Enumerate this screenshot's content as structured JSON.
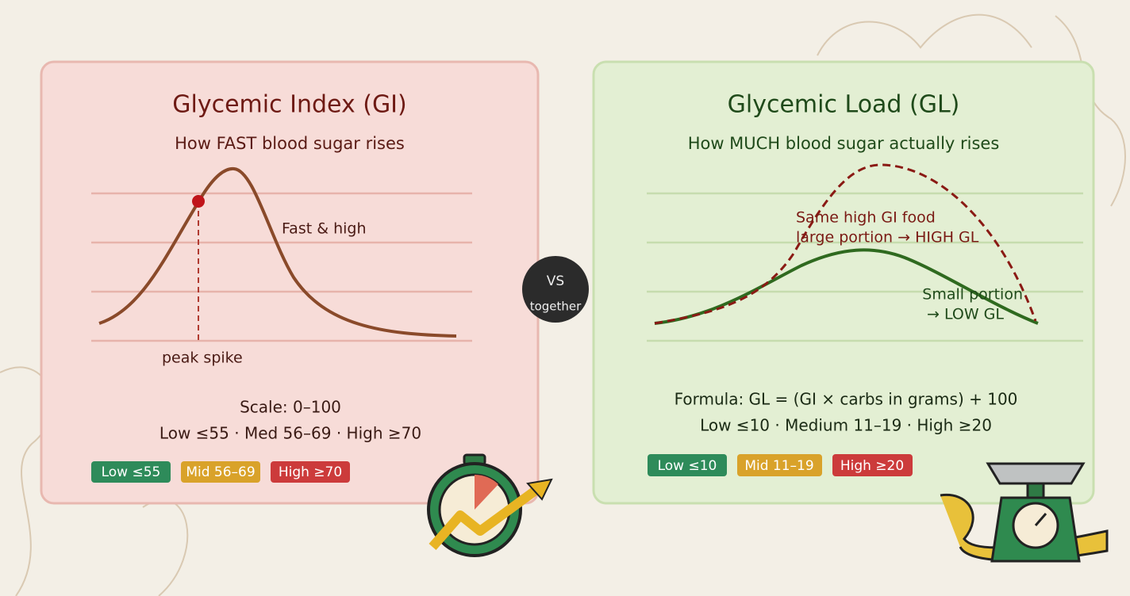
{
  "left": {
    "title": "Glycemic Index (GI)",
    "subtitle": "How FAST blood sugar rises",
    "annotations": {
      "curve": "Fast & high",
      "peak": "peak spike"
    },
    "scale": "Scale: 0–100",
    "ranges": "Low ≤55 · Med 56–69 · High ≥70",
    "badges": [
      "Low ≤55",
      "Mid 56–69",
      "High ≥70"
    ]
  },
  "center": {
    "top": "VS",
    "bottom": "together"
  },
  "right": {
    "title": "Glycemic Load (GL)",
    "subtitle": "How MUCH blood sugar actually rises",
    "annotations": {
      "high": [
        "Same high GI food",
        "large portion → HIGH GL"
      ],
      "low": [
        "Small portion",
        "→ LOW GL"
      ]
    },
    "formula": "Formula: GL = (GI × carbs in grams) + 100",
    "ranges": "Low ≤10 · Medium 11–19 · High ≥20",
    "badges": [
      "Low ≤10",
      "Mid 11–19",
      "High ≥20"
    ]
  }
}
